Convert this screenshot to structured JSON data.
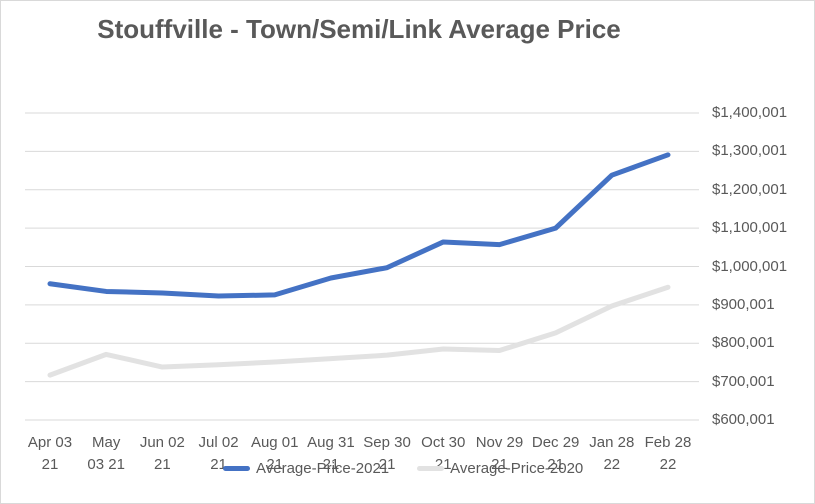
{
  "chart_data": {
    "type": "line",
    "title": "Stouffville - Town/Semi/Link Average Price",
    "legend_position": "bottom",
    "grid": true,
    "categories": [
      {
        "line1": "Apr 03",
        "line2": "21"
      },
      {
        "line1": "May",
        "line2": "03 21"
      },
      {
        "line1": "Jun 02",
        "line2": "21"
      },
      {
        "line1": "Jul 02",
        "line2": "21"
      },
      {
        "line1": "Aug 01",
        "line2": "21"
      },
      {
        "line1": "Aug 31",
        "line2": "21"
      },
      {
        "line1": "Sep 30",
        "line2": "21"
      },
      {
        "line1": "Oct 30",
        "line2": "21"
      },
      {
        "line1": "Nov 29",
        "line2": "21"
      },
      {
        "line1": "Dec 29",
        "line2": "21"
      },
      {
        "line1": "Jan 28",
        "line2": "22"
      },
      {
        "line1": "Feb 28",
        "line2": "22"
      }
    ],
    "series": [
      {
        "name": "Average-Price-2021",
        "color": "#4472C4",
        "values": [
          955000,
          935000,
          931000,
          923000,
          926000,
          970000,
          997000,
          1064000,
          1057000,
          1100000,
          1238000,
          1291000
        ]
      },
      {
        "name": "Average-Price-2020",
        "color": "#E2E2E2",
        "values": [
          717000,
          771000,
          738000,
          744000,
          751000,
          760000,
          769000,
          785000,
          781000,
          827000,
          897000,
          946000
        ]
      }
    ],
    "y_axis": {
      "side": "right",
      "min": 600001,
      "max": 1400001,
      "step": 100000,
      "labels": [
        "$1,400,001",
        "$1,300,001",
        "$1,200,001",
        "$1,100,001",
        "$1,000,001",
        "$900,001",
        "$800,001",
        "$700,001",
        "$600,001"
      ]
    },
    "colors": {
      "gridline": "#D9D9D9",
      "axis_text": "#595959",
      "title_text": "#595959",
      "canvas_border": "#D9D9D9"
    }
  }
}
